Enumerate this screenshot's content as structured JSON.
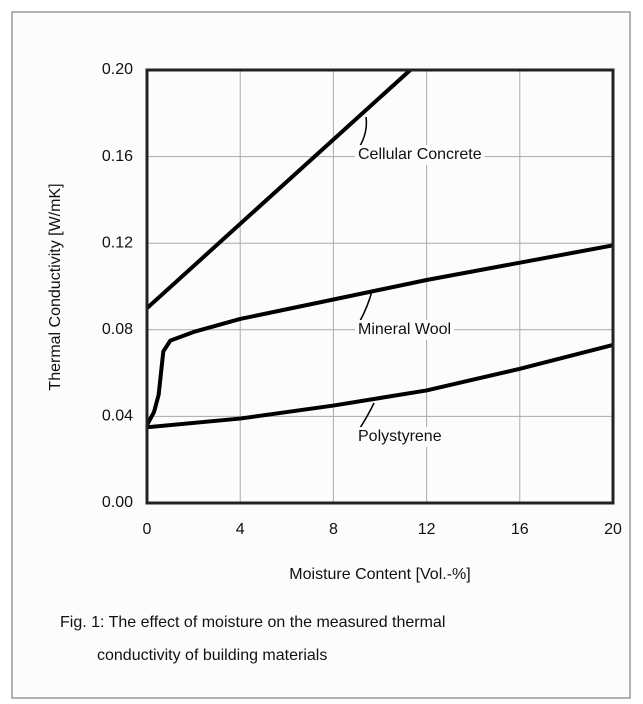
{
  "chart_data": {
    "type": "line",
    "xlabel": "Moisture Content [Vol.-%]",
    "ylabel": "Thermal Conductivity [W/mK]",
    "caption": [
      "Fig. 1: The effect of moisture on the measured thermal",
      "conductivity of building materials"
    ],
    "xlim": [
      0,
      20
    ],
    "ylim": [
      0,
      0.2
    ],
    "xticks": [
      0,
      4,
      8,
      12,
      16,
      20
    ],
    "yticks": [
      {
        "value": 0,
        "label": "0.00"
      },
      0.04,
      0.08,
      0.12,
      0.16,
      {
        "value": 0.2,
        "label": "0.20"
      }
    ],
    "grid": true,
    "series": [
      {
        "name": "Cellular Concrete",
        "color": "#000000",
        "x": [
          0,
          11.3
        ],
        "values": [
          0.09,
          0.2
        ]
      },
      {
        "name": "Mineral Wool",
        "color": "#000000",
        "x": [
          0,
          0.3,
          0.5,
          0.7,
          1,
          2,
          4,
          8,
          12,
          16,
          20
        ],
        "values": [
          0.036,
          0.042,
          0.05,
          0.07,
          0.075,
          0.079,
          0.085,
          0.094,
          0.103,
          0.111,
          0.119
        ]
      },
      {
        "name": "Polystyrene",
        "color": "#000000",
        "x": [
          0,
          4,
          8,
          12,
          16,
          20
        ],
        "values": [
          0.035,
          0.039,
          0.045,
          0.052,
          0.062,
          0.073
        ]
      }
    ]
  }
}
